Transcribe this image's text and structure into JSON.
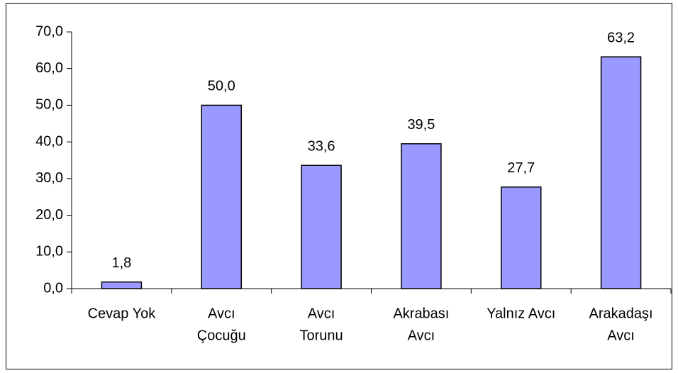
{
  "chart_data": {
    "type": "bar",
    "categories": [
      [
        "Cevap Yok"
      ],
      [
        "Avcı",
        "Çocuğu"
      ],
      [
        "Avcı",
        "Torunu"
      ],
      [
        "Akrabası",
        "Avcı"
      ],
      [
        "Yalnız Avcı"
      ],
      [
        "Arakadaşı",
        "Avcı"
      ]
    ],
    "values": [
      1.8,
      50.0,
      33.6,
      39.5,
      27.7,
      63.2
    ],
    "value_labels": [
      "1,8",
      "50,0",
      "33,6",
      "39,5",
      "27,7",
      "63,2"
    ],
    "color": "#9999ff",
    "ylim": [
      0,
      70
    ],
    "yticks": [
      {
        "value": 0,
        "label": "0,0"
      },
      {
        "value": 10,
        "label": "10,0"
      },
      {
        "value": 20,
        "label": "20,0"
      },
      {
        "value": 30,
        "label": "30,0"
      },
      {
        "value": 40,
        "label": "40,0"
      },
      {
        "value": 50,
        "label": "50,0"
      },
      {
        "value": 60,
        "label": "60,0"
      },
      {
        "value": 70,
        "label": "70,0"
      }
    ],
    "grid": false
  }
}
